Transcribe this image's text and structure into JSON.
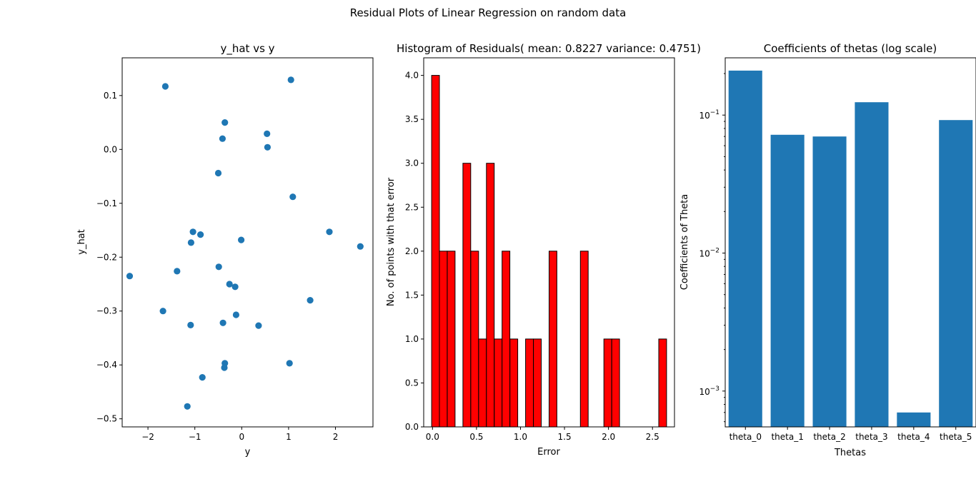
{
  "figure": {
    "suptitle": "Residual Plots of Linear Regression on random data"
  },
  "colors": {
    "scatter": "#1f77b4",
    "hist_fill": "#ff0000",
    "hist_edge": "#000000",
    "theta_bar": "#1f77b4"
  },
  "chart_data": [
    {
      "type": "scatter",
      "title": "y_hat vs y",
      "xlabel": "y",
      "ylabel": "y_hat",
      "xlim": [
        -2.55,
        2.8
      ],
      "ylim": [
        -0.515,
        0.17
      ],
      "xticks": [
        -2,
        -1,
        0,
        1,
        2
      ],
      "yticks": [
        -0.5,
        -0.4,
        -0.3,
        -0.2,
        -0.1,
        0.0,
        0.1
      ],
      "ytick_labels": [
        "−0.5",
        "−0.4",
        "−0.3",
        "−0.2",
        "−0.1",
        "0.0",
        "0.1"
      ],
      "xtick_labels": [
        "−2",
        "−1",
        "0",
        "1",
        "2"
      ],
      "points": [
        [
          -1.63,
          0.117
        ],
        [
          1.05,
          0.129
        ],
        [
          -0.36,
          0.05
        ],
        [
          0.54,
          0.029
        ],
        [
          -0.41,
          0.02
        ],
        [
          0.55,
          0.004
        ],
        [
          -0.5,
          -0.044
        ],
        [
          1.09,
          -0.088
        ],
        [
          -1.04,
          -0.153
        ],
        [
          -0.88,
          -0.158
        ],
        [
          -1.08,
          -0.173
        ],
        [
          -0.01,
          -0.168
        ],
        [
          1.87,
          -0.153
        ],
        [
          2.53,
          -0.18
        ],
        [
          -2.39,
          -0.235
        ],
        [
          -1.38,
          -0.226
        ],
        [
          -0.49,
          -0.218
        ],
        [
          -0.26,
          -0.25
        ],
        [
          -0.14,
          -0.255
        ],
        [
          1.46,
          -0.28
        ],
        [
          -1.68,
          -0.3
        ],
        [
          -0.12,
          -0.307
        ],
        [
          -1.09,
          -0.326
        ],
        [
          -0.4,
          -0.322
        ],
        [
          0.36,
          -0.327
        ],
        [
          -0.36,
          -0.397
        ],
        [
          1.02,
          -0.397
        ],
        [
          -0.37,
          -0.405
        ],
        [
          -0.84,
          -0.423
        ],
        [
          -1.16,
          -0.477
        ]
      ]
    },
    {
      "type": "bar",
      "title": "Histogram of Residuals( mean: 0.8227 variance: 0.4751)",
      "xlabel": "Error",
      "ylabel": "No. of points with that error",
      "xlim": [
        -0.1,
        2.75
      ],
      "ylim": [
        0,
        4.2
      ],
      "xticks": [
        0.0,
        0.5,
        1.0,
        1.5,
        2.0,
        2.5
      ],
      "xtick_labels": [
        "0.0",
        "0.5",
        "1.0",
        "1.5",
        "2.0",
        "2.5"
      ],
      "yticks": [
        0.0,
        0.5,
        1.0,
        1.5,
        2.0,
        2.5,
        3.0,
        3.5,
        4.0
      ],
      "ytick_labels": [
        "0.0",
        "0.5",
        "1.0",
        "1.5",
        "2.0",
        "2.5",
        "3.0",
        "3.5",
        "4.0"
      ],
      "bin_width": 0.0888,
      "bins": [
        [
          -0.01,
          4
        ],
        [
          0.079,
          2
        ],
        [
          0.168,
          2
        ],
        [
          0.257,
          0
        ],
        [
          0.346,
          3
        ],
        [
          0.435,
          2
        ],
        [
          0.524,
          1
        ],
        [
          0.613,
          3
        ],
        [
          0.702,
          1
        ],
        [
          0.791,
          2
        ],
        [
          0.88,
          1
        ],
        [
          0.969,
          0
        ],
        [
          1.058,
          1
        ],
        [
          1.147,
          1
        ],
        [
          1.236,
          0
        ],
        [
          1.325,
          2
        ],
        [
          1.414,
          0
        ],
        [
          1.503,
          0
        ],
        [
          1.592,
          0
        ],
        [
          1.681,
          2
        ],
        [
          1.77,
          0
        ],
        [
          1.859,
          0
        ],
        [
          1.948,
          1
        ],
        [
          2.037,
          1
        ],
        [
          2.126,
          0
        ],
        [
          2.215,
          0
        ],
        [
          2.304,
          0
        ],
        [
          2.393,
          0
        ],
        [
          2.482,
          0
        ],
        [
          2.571,
          1
        ]
      ]
    },
    {
      "type": "bar",
      "scale": "log",
      "title": "Coefficients of thetas (log scale)",
      "xlabel": "Thetas",
      "ylabel": "Coefficients of Theta",
      "categories": [
        "theta_0",
        "theta_1",
        "theta_2",
        "theta_3",
        "theta_4",
        "theta_5"
      ],
      "values": [
        0.21,
        0.072,
        0.07,
        0.124,
        0.0007,
        0.092
      ],
      "ylim": [
        0.00055,
        0.26
      ],
      "yticks": [
        0.001,
        0.01,
        0.1
      ],
      "ytick_base": "10",
      "ytick_exps": [
        "−3",
        "−2",
        "−1"
      ]
    }
  ]
}
